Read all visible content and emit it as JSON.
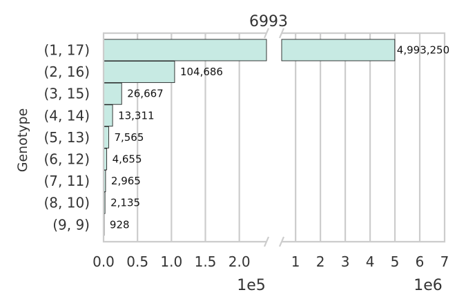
{
  "chart_data": {
    "type": "bar",
    "orientation": "horizontal",
    "title": "6993",
    "ylabel": "Genotype",
    "xlabel": "",
    "categories": [
      "(9, 9)",
      "(8, 10)",
      "(7, 11)",
      "(6, 12)",
      "(5, 13)",
      "(4, 14)",
      "(3, 15)",
      "(2, 16)",
      "(1, 17)"
    ],
    "values": [
      928,
      2135,
      2965,
      4655,
      7565,
      13311,
      26667,
      104686,
      4993250
    ],
    "value_labels": [
      "928",
      "2,135",
      "2,965",
      "4,655",
      "7,565",
      "13,311",
      "26,667",
      "104,686",
      "4,993,250"
    ],
    "broken_x_axis": true,
    "left_panel": {
      "xlim": [
        0,
        240000
      ],
      "ticks": [
        0,
        50000,
        100000,
        150000,
        200000
      ],
      "tick_labels": [
        "0.0",
        "0.5",
        "1.0",
        "1.5",
        "2.0"
      ],
      "offset_label": "1e5"
    },
    "right_panel": {
      "xlim": [
        440000,
        7000000
      ],
      "ticks": [
        1000000,
        2000000,
        3000000,
        4000000,
        5000000,
        6000000,
        7000000
      ],
      "tick_labels": [
        "1",
        "2",
        "3",
        "4",
        "5",
        "6",
        "7"
      ],
      "offset_label": "1e6"
    },
    "grid": true,
    "colors": {
      "bar": "#c7eae3",
      "bar_edge": "#222222",
      "grid": "#cccccc",
      "text": "#333333"
    }
  }
}
